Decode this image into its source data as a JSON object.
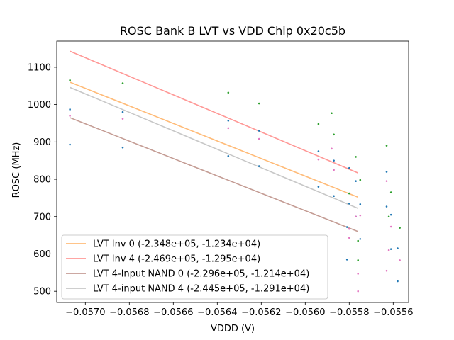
{
  "chart_data": {
    "type": "scatter+line",
    "title": "ROSC Bank B LVT vs VDD Chip 0x20c5b",
    "xlabel": "VDDD (V)",
    "ylabel": "ROSC (MHz)",
    "xlim": [
      -0.05713,
      -0.05553
    ],
    "ylim": [
      470,
      1170
    ],
    "xticks": [
      -0.057,
      -0.0568,
      -0.0566,
      -0.0564,
      -0.0562,
      -0.056,
      -0.0558,
      -0.0556
    ],
    "xtick_labels": [
      "−0.0570",
      "−0.0568",
      "−0.0566",
      "−0.0564",
      "−0.0562",
      "−0.0560",
      "−0.0558",
      "−0.0556"
    ],
    "yticks": [
      500,
      600,
      700,
      800,
      900,
      1000,
      1100
    ],
    "ytick_labels": [
      "500",
      "600",
      "700",
      "800",
      "900",
      "1000",
      "1100"
    ],
    "scatter_series": [
      {
        "name": "blue",
        "color": "#1f77b4",
        "points": [
          [
            -0.05707,
            987
          ],
          [
            -0.05707,
            893
          ],
          [
            -0.05683,
            980
          ],
          [
            -0.05683,
            885
          ],
          [
            -0.05635,
            957
          ],
          [
            -0.05635,
            862
          ],
          [
            -0.05621,
            930
          ],
          [
            -0.05621,
            835
          ],
          [
            -0.05594,
            875
          ],
          [
            -0.05594,
            780
          ],
          [
            -0.05587,
            850
          ],
          [
            -0.05587,
            755
          ],
          [
            -0.0558,
            830
          ],
          [
            -0.0558,
            735
          ],
          [
            -0.05577,
            795
          ],
          [
            -0.05577,
            700
          ],
          [
            -0.05575,
            733
          ],
          [
            -0.05575,
            640
          ],
          [
            -0.05581,
            672
          ],
          [
            -0.05581,
            585
          ],
          [
            -0.05563,
            820
          ],
          [
            -0.05563,
            727
          ],
          [
            -0.05561,
            705
          ],
          [
            -0.05561,
            613
          ],
          [
            -0.05558,
            615
          ],
          [
            -0.05558,
            527
          ]
        ]
      },
      {
        "name": "green",
        "color": "#2ca02c",
        "points": [
          [
            -0.05707,
            1065
          ],
          [
            -0.05683,
            1057
          ],
          [
            -0.05635,
            1032
          ],
          [
            -0.05621,
            1003
          ],
          [
            -0.05594,
            948
          ],
          [
            -0.05588,
            977
          ],
          [
            -0.05587,
            920
          ],
          [
            -0.05577,
            860
          ],
          [
            -0.05575,
            798
          ],
          [
            -0.0558,
            762
          ],
          [
            -0.05576,
            635
          ],
          [
            -0.05563,
            890
          ],
          [
            -0.05562,
            700
          ],
          [
            -0.05561,
            765
          ],
          [
            -0.05557,
            670
          ],
          [
            -0.05576,
            583
          ]
        ]
      },
      {
        "name": "pink",
        "color": "#e377c2",
        "points": [
          [
            -0.05707,
            970
          ],
          [
            -0.05683,
            962
          ],
          [
            -0.05635,
            937
          ],
          [
            -0.05621,
            908
          ],
          [
            -0.05594,
            853
          ],
          [
            -0.05588,
            882
          ],
          [
            -0.05587,
            825
          ],
          [
            -0.05577,
            700
          ],
          [
            -0.05575,
            703
          ],
          [
            -0.0558,
            667
          ],
          [
            -0.05576,
            547
          ],
          [
            -0.05563,
            795
          ],
          [
            -0.05562,
            610
          ],
          [
            -0.05561,
            673
          ],
          [
            -0.05557,
            583
          ],
          [
            -0.05576,
            500
          ],
          [
            -0.05563,
            555
          ],
          [
            -0.0558,
            643
          ]
        ]
      }
    ],
    "line_series": [
      {
        "name": "LVT Inv 0 (-2.348e+05, -1.234e+04)",
        "color": "#ffbb78",
        "x": [
          -0.05707,
          -0.05576
        ],
        "y": [
          1060,
          752
        ]
      },
      {
        "name": "LVT Inv 4 (-2.469e+05, -1.295e+04)",
        "color": "#ff9896",
        "x": [
          -0.05707,
          -0.05576
        ],
        "y": [
          1143,
          817
        ]
      },
      {
        "name": "LVT 4-input NAND 0 (-2.296e+05, -1.214e+04)",
        "color": "#c49c94",
        "x": [
          -0.05707,
          -0.05576
        ],
        "y": [
          965,
          660
        ]
      },
      {
        "name": "LVT 4-input NAND 4 (-2.445e+05, -1.291e+04)",
        "color": "#c7c7c7",
        "x": [
          -0.05707,
          -0.05576
        ],
        "y": [
          1046,
          722
        ]
      }
    ],
    "legend_position": "lower-left"
  }
}
